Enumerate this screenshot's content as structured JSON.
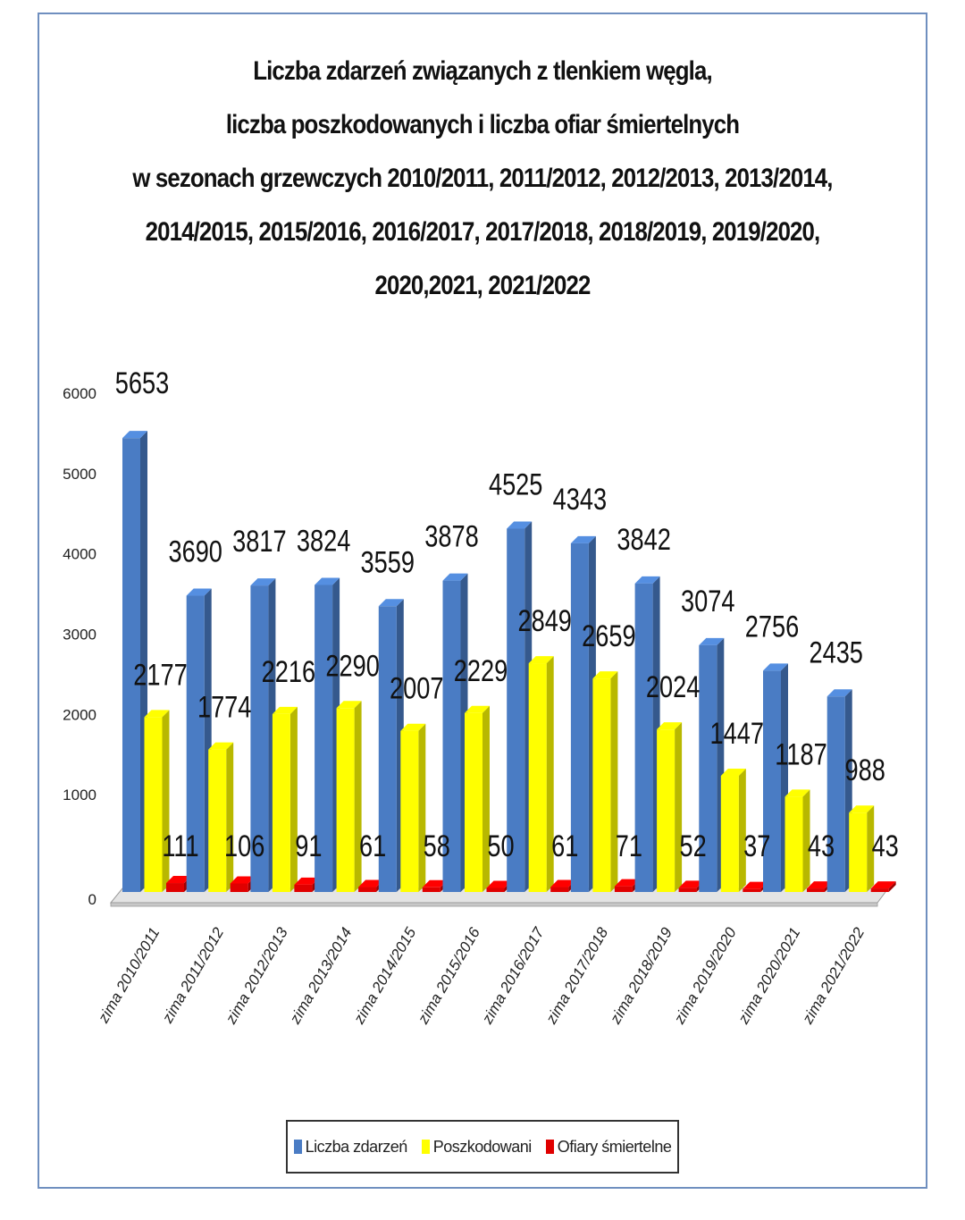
{
  "chart_data": {
    "type": "bar",
    "title_lines": [
      "Liczba zdarzeń związanych z tlenkiem węgla,",
      "liczba poszkodowanych i liczba ofiar śmiertelnych",
      "w sezonach grzewczych 2010/2011, 2011/2012, 2012/2013, 2013/2014,",
      "2014/2015, 2015/2016, 2016/2017, 2017/2018, 2018/2019, 2019/2020,",
      "2020,2021, 2021/2022"
    ],
    "categories": [
      "zima 2010/2011",
      "zima 2011/2012",
      "zima 2012/2013",
      "zima 2013/2014",
      "zima 2014/2015",
      "zima 2015/2016",
      "zima 2016/2017",
      "zima 2017/2018",
      "zima 2018/2019",
      "zima 2019/2020",
      "zima 2020/2021",
      "zima 2021/2022"
    ],
    "series": [
      {
        "name": "Liczba zdarzeń",
        "color": "#4a7cc4",
        "values": [
          5653,
          3690,
          3817,
          3824,
          3559,
          3878,
          4525,
          4343,
          3842,
          3074,
          2756,
          2435
        ]
      },
      {
        "name": "Poszkodowani",
        "color": "#ffff00",
        "values": [
          2177,
          1774,
          2216,
          2290,
          2007,
          2229,
          2849,
          2659,
          2024,
          1447,
          1187,
          988
        ]
      },
      {
        "name": "Ofiary śmiertelne",
        "color": "#e00000",
        "values": [
          111,
          106,
          91,
          61,
          58,
          50,
          61,
          71,
          52,
          37,
          43,
          43
        ]
      }
    ],
    "yticks": [
      0,
      1000,
      2000,
      3000,
      4000,
      5000,
      6000
    ],
    "ylim": [
      0,
      6000
    ],
    "legend_position": "bottom",
    "grid": false,
    "style": "3d-bar"
  }
}
